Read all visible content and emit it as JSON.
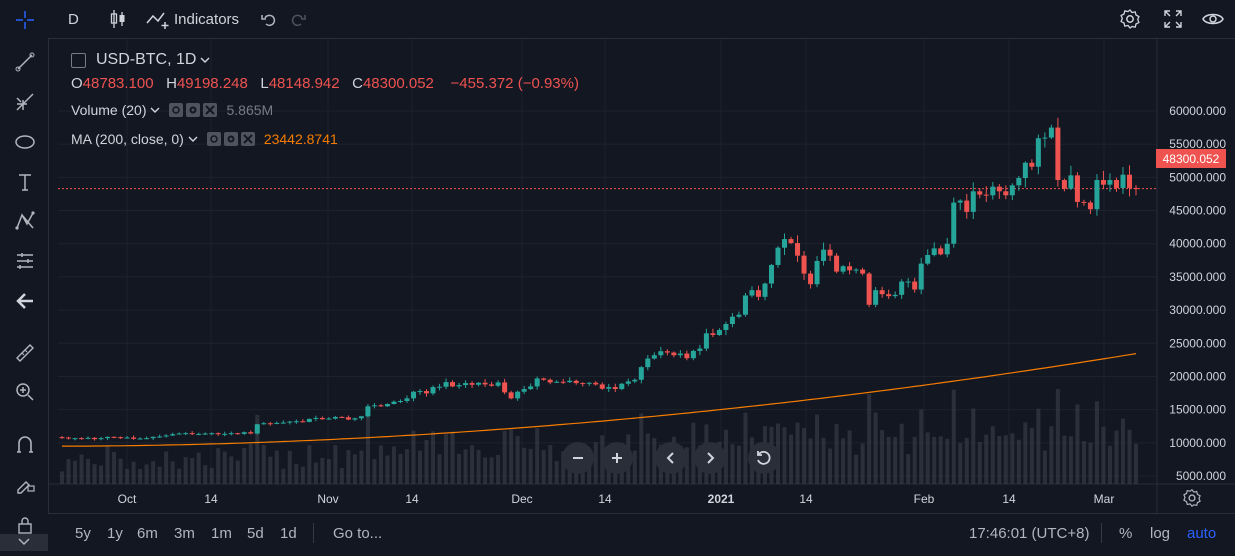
{
  "toolbar": {
    "interval": "D",
    "indicators_label": "Indicators"
  },
  "legend": {
    "symbol": "USD-BTC, 1D",
    "open_key": "O",
    "open": "48783.100",
    "high_key": "H",
    "high": "49198.248",
    "low_key": "L",
    "low": "48148.942",
    "close_key": "C",
    "close": "48300.052",
    "change": "−455.372 (−0.93%)"
  },
  "indicators": [
    {
      "label": "Volume (20)",
      "value": "5.865M",
      "color": "#787b86"
    },
    {
      "label": "MA (200, close, 0)",
      "value": "23442.8741",
      "color": "#f57c00"
    }
  ],
  "bottom": {
    "ranges": [
      "5y",
      "1y",
      "6m",
      "3m",
      "1m",
      "5d",
      "1d"
    ],
    "goto": "Go to...",
    "time": "17:46:01 (UTC+8)",
    "percent": "%",
    "log": "log",
    "auto": "auto"
  },
  "colors": {
    "up": "#26a69a",
    "down": "#ef5350",
    "ma": "#f57c00",
    "accent": "#2962ff"
  },
  "chart_data": {
    "type": "candlestick",
    "symbol": "USD-BTC",
    "interval": "1D",
    "y_ticks": [
      "5000.000",
      "10000.000",
      "15000.000",
      "20000.000",
      "25000.000",
      "30000.000",
      "35000.000",
      "40000.000",
      "45000.000",
      "50000.000",
      "55000.000",
      "60000.000"
    ],
    "y_tick_values": [
      5000,
      10000,
      15000,
      20000,
      25000,
      30000,
      35000,
      40000,
      45000,
      50000,
      55000,
      60000
    ],
    "x_ticks": [
      "Oct",
      "14",
      "Nov",
      "14",
      "Dec",
      "14",
      "2021",
      "14",
      "Feb",
      "14",
      "Mar"
    ],
    "last_price_label": "48300.052",
    "last_price": 48300.052,
    "closes": [
      10800,
      10650,
      10700,
      10600,
      10750,
      10550,
      10700,
      10900,
      10850,
      10750,
      10800,
      10600,
      10650,
      10700,
      10900,
      10950,
      11100,
      11300,
      11400,
      11450,
      11300,
      11350,
      11400,
      11450,
      11300,
      11350,
      11450,
      11350,
      11600,
      11400,
      12800,
      12950,
      12900,
      13000,
      13050,
      13200,
      13250,
      13150,
      13600,
      13750,
      13550,
      13650,
      13900,
      13850,
      13500,
      13700,
      14000,
      15500,
      15650,
      15500,
      15850,
      16200,
      16300,
      16700,
      17700,
      17800,
      17450,
      18400,
      18450,
      19150,
      18500,
      18700,
      19000,
      18750,
      19050,
      18800,
      18600,
      19100,
      17600,
      16700,
      17700,
      18100,
      18500,
      19700,
      19500,
      19100,
      19200,
      19150,
      19350,
      19000,
      18900,
      19050,
      18800,
      18150,
      18400,
      18100,
      18900,
      19250,
      19500,
      21400,
      22700,
      23200,
      23800,
      23600,
      23200,
      23450,
      22750,
      23850,
      24200,
      26500,
      26250,
      27000,
      27900,
      29000,
      29300,
      32200,
      33000,
      32000,
      34000,
      36800,
      39400,
      40700,
      40100,
      38200,
      35500,
      33900,
      37400,
      39100,
      38200,
      35800,
      36600,
      36000,
      36100,
      35500,
      30800,
      33000,
      32400,
      32100,
      32300,
      34300,
      34300,
      33100,
      37000,
      38300,
      39300,
      38400,
      40000,
      46200,
      46500,
      44800,
      47900,
      47400,
      47300,
      48600,
      47900,
      47300,
      48800,
      49900,
      52200,
      51600,
      55900,
      56000,
      57500,
      49600,
      48300,
      50300,
      46300,
      46200,
      45200,
      49600,
      48900,
      49600,
      48400,
      50400,
      48400,
      48300
    ],
    "volume_note": "Volume histogram shown at bottom (relative bars)",
    "ma_start": 9500,
    "ma_end": 23442.8741
  }
}
